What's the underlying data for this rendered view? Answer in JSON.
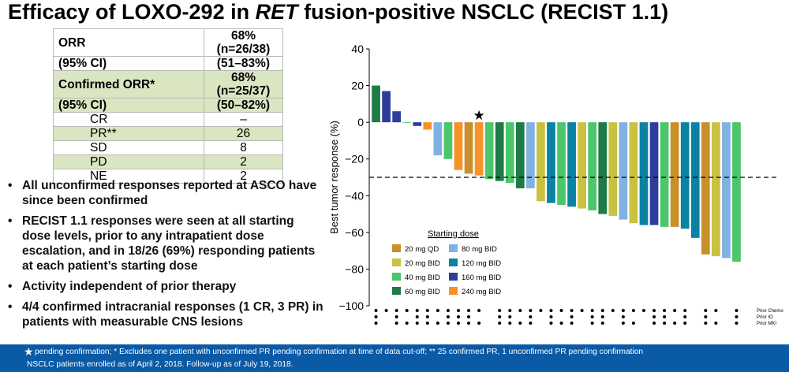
{
  "title": {
    "prefix": "Efficacy of LOXO-292 in ",
    "italic": "RET",
    "suffix": " fusion-positive NSCLC (RECIST 1.1)"
  },
  "table": {
    "orr": {
      "label1": "ORR",
      "label2": "(95% CI)",
      "value1": "68% (n=26/38)",
      "value2": "(51–83%)"
    },
    "cORR": {
      "label1": "Confirmed ORR*",
      "label2": "(95% CI)",
      "value1": "68% (n=25/37)",
      "value2": "(50–82%)"
    },
    "rows": [
      {
        "label": "CR",
        "value": "–"
      },
      {
        "label": "PR**",
        "value": "26"
      },
      {
        "label": "SD",
        "value": "8"
      },
      {
        "label": "PD",
        "value": "2"
      },
      {
        "label": "NE",
        "value": "2"
      }
    ]
  },
  "bullets": [
    "All unconfirmed responses reported at ASCO have since been confirmed",
    "RECIST 1.1 responses were seen at all starting dose levels, prior to any intrapatient dose escalation, and in 18/26 (69%) responding patients at each patient’s starting dose",
    "Activity independent of prior therapy",
    "4/4 confirmed intracranial responses (1 CR, 3 PR) in patients with measurable CNS lesions"
  ],
  "footer": {
    "star": "★",
    "line1": "pending confirmation; * Excludes one patient with unconfirmed PR pending confirmation at time of data cut-off; ** 25 confirmed PR, 1 unconfirmed PR pending confirmation",
    "line2": "NSCLC patients enrolled as of April 2, 2018. Follow-up as of July 19, 2018."
  },
  "chart_data": {
    "type": "bar",
    "ylabel": "Best tumor response (%)",
    "ylim": [
      -100,
      40
    ],
    "yticks": [
      40,
      20,
      0,
      -20,
      -40,
      -60,
      -80,
      -100
    ],
    "reference_line": -30,
    "legend_title": "Starting dose",
    "legend_placement": "bottom-left",
    "dose_colors": {
      "20 mg QD": "#c8902a",
      "20 mg BID": "#c9c241",
      "40 mg BID": "#4bc66a",
      "60 mg BID": "#1e7a47",
      "80 mg BID": "#7fb1e3",
      "120 mg BID": "#0a82a3",
      "160 mg BID": "#2d3d9a",
      "240 mg BID": "#f5922a"
    },
    "legend_order": [
      "20 mg QD",
      "80 mg BID",
      "20 mg BID",
      "120 mg BID",
      "40 mg BID",
      "160 mg BID",
      "60 mg BID",
      "240 mg BID"
    ],
    "bars": [
      {
        "value": 20,
        "dose": "60 mg BID"
      },
      {
        "value": 17,
        "dose": "160 mg BID"
      },
      {
        "value": 6,
        "dose": "160 mg BID"
      },
      {
        "value": 0,
        "dose": "40 mg BID"
      },
      {
        "value": -2,
        "dose": "160 mg BID"
      },
      {
        "value": -4,
        "dose": "240 mg BID"
      },
      {
        "value": -18,
        "dose": "80 mg BID"
      },
      {
        "value": -20,
        "dose": "40 mg BID"
      },
      {
        "value": -26,
        "dose": "240 mg BID"
      },
      {
        "value": -28,
        "dose": "20 mg QD"
      },
      {
        "value": -29,
        "dose": "240 mg BID",
        "marker": "★"
      },
      {
        "value": -31,
        "dose": "40 mg BID"
      },
      {
        "value": -32,
        "dose": "60 mg BID"
      },
      {
        "value": -33,
        "dose": "40 mg BID"
      },
      {
        "value": -36,
        "dose": "60 mg BID"
      },
      {
        "value": -36,
        "dose": "80 mg BID"
      },
      {
        "value": -43,
        "dose": "20 mg BID"
      },
      {
        "value": -44,
        "dose": "120 mg BID"
      },
      {
        "value": -45,
        "dose": "40 mg BID"
      },
      {
        "value": -46,
        "dose": "120 mg BID"
      },
      {
        "value": -47,
        "dose": "20 mg BID"
      },
      {
        "value": -48,
        "dose": "40 mg BID"
      },
      {
        "value": -50,
        "dose": "60 mg BID"
      },
      {
        "value": -51,
        "dose": "20 mg BID"
      },
      {
        "value": -53,
        "dose": "80 mg BID"
      },
      {
        "value": -55,
        "dose": "20 mg BID"
      },
      {
        "value": -56,
        "dose": "120 mg BID"
      },
      {
        "value": -56,
        "dose": "160 mg BID"
      },
      {
        "value": -57,
        "dose": "40 mg BID"
      },
      {
        "value": -57,
        "dose": "20 mg QD"
      },
      {
        "value": -58,
        "dose": "120 mg BID"
      },
      {
        "value": -63,
        "dose": "120 mg BID"
      },
      {
        "value": -72,
        "dose": "20 mg QD"
      },
      {
        "value": -73,
        "dose": "20 mg BID"
      },
      {
        "value": -74,
        "dose": "80 mg BID"
      },
      {
        "value": -76,
        "dose": "40 mg BID"
      }
    ],
    "prior_therapy_labels": [
      "Prior Chemo",
      "Prior IO",
      "Prior MKI"
    ],
    "prior_therapy": [
      [
        1,
        1,
        1
      ],
      [
        1,
        0,
        0
      ],
      [
        1,
        1,
        1
      ],
      [
        1,
        0,
        1
      ],
      [
        1,
        1,
        1
      ],
      [
        1,
        1,
        1
      ],
      [
        1,
        0,
        1
      ],
      [
        1,
        1,
        1
      ],
      [
        1,
        1,
        1
      ],
      [
        1,
        1,
        1
      ],
      [
        1,
        0,
        1
      ],
      [
        0,
        0,
        0
      ],
      [
        1,
        1,
        1
      ],
      [
        1,
        1,
        1
      ],
      [
        1,
        0,
        1
      ],
      [
        1,
        1,
        1
      ],
      [
        1,
        0,
        0
      ],
      [
        1,
        1,
        1
      ],
      [
        1,
        0,
        1
      ],
      [
        1,
        1,
        1
      ],
      [
        1,
        0,
        0
      ],
      [
        1,
        1,
        1
      ],
      [
        1,
        1,
        1
      ],
      [
        1,
        0,
        0
      ],
      [
        1,
        1,
        1
      ],
      [
        1,
        0,
        1
      ],
      [
        1,
        0,
        0
      ],
      [
        1,
        1,
        1
      ],
      [
        1,
        1,
        1
      ],
      [
        1,
        0,
        1
      ],
      [
        1,
        1,
        1
      ],
      [
        0,
        0,
        0
      ],
      [
        1,
        1,
        1
      ],
      [
        1,
        0,
        1
      ],
      [
        0,
        0,
        0
      ],
      [
        1,
        1,
        1
      ]
    ]
  }
}
